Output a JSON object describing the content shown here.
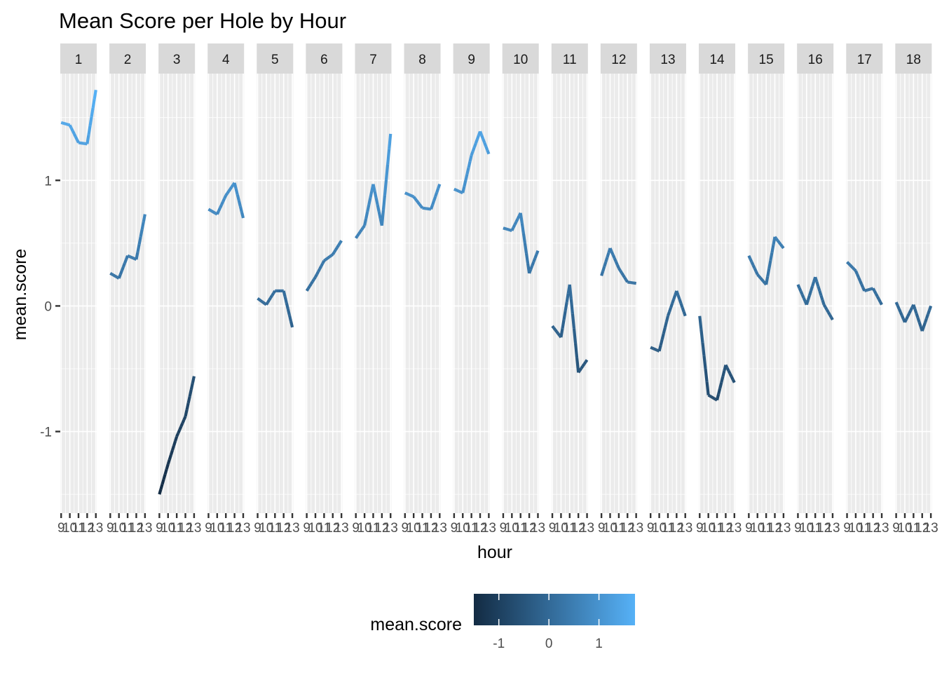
{
  "chart_data": {
    "type": "line",
    "title": "Mean Score per Hole by Hour",
    "xlabel": "hour",
    "ylabel": "mean.score",
    "facet_by": "hole",
    "ylim": [
      -1.65,
      1.85
    ],
    "y_ticks": [
      -1,
      0,
      1
    ],
    "x_hours": [
      9,
      10,
      11,
      12,
      13
    ],
    "x_range": [
      8.9,
      13.1
    ],
    "x_tick_labels": [
      "9",
      "10",
      "11",
      "12",
      "13"
    ],
    "grid": true,
    "legend": {
      "title": "mean.score",
      "position": "bottom",
      "type": "colorbar",
      "ticks": [
        -1,
        0,
        1
      ],
      "low_color": "#132B43",
      "high_color": "#56B1F7",
      "range": [
        -1.5,
        1.72
      ]
    },
    "facets": [
      {
        "label": "1",
        "values": [
          1.46,
          1.44,
          1.3,
          1.29,
          1.72
        ]
      },
      {
        "label": "2",
        "values": [
          0.26,
          0.22,
          0.4,
          0.37,
          0.73
        ]
      },
      {
        "label": "3",
        "values": [
          -1.5,
          -1.26,
          -1.04,
          -0.88,
          -0.56
        ]
      },
      {
        "label": "4",
        "values": [
          0.77,
          0.73,
          0.88,
          0.98,
          0.7
        ]
      },
      {
        "label": "5",
        "values": [
          0.06,
          0.01,
          0.12,
          0.12,
          -0.17
        ]
      },
      {
        "label": "6",
        "values": [
          0.12,
          0.23,
          0.36,
          0.41,
          0.52
        ]
      },
      {
        "label": "7",
        "values": [
          0.54,
          0.64,
          0.97,
          0.64,
          1.37
        ]
      },
      {
        "label": "8",
        "values": [
          0.9,
          0.87,
          0.78,
          0.77,
          0.97
        ]
      },
      {
        "label": "9",
        "values": [
          0.93,
          0.9,
          1.2,
          1.39,
          1.21
        ]
      },
      {
        "label": "10",
        "values": [
          0.62,
          0.6,
          0.74,
          0.26,
          0.44
        ]
      },
      {
        "label": "11",
        "values": [
          -0.16,
          -0.25,
          0.17,
          -0.53,
          -0.43
        ]
      },
      {
        "label": "12",
        "values": [
          0.24,
          0.46,
          0.3,
          0.19,
          0.18
        ]
      },
      {
        "label": "13",
        "values": [
          -0.33,
          -0.36,
          -0.08,
          0.12,
          -0.08
        ]
      },
      {
        "label": "14",
        "values": [
          -0.08,
          -0.71,
          -0.75,
          -0.47,
          -0.61
        ]
      },
      {
        "label": "15",
        "values": [
          0.4,
          0.25,
          0.17,
          0.55,
          0.46
        ]
      },
      {
        "label": "16",
        "values": [
          0.17,
          0.01,
          0.23,
          0.01,
          -0.11
        ]
      },
      {
        "label": "17",
        "values": [
          0.35,
          0.28,
          0.12,
          0.14,
          0.01
        ]
      },
      {
        "label": "18",
        "values": [
          0.03,
          -0.13,
          0.01,
          -0.2,
          0.0
        ]
      }
    ]
  }
}
